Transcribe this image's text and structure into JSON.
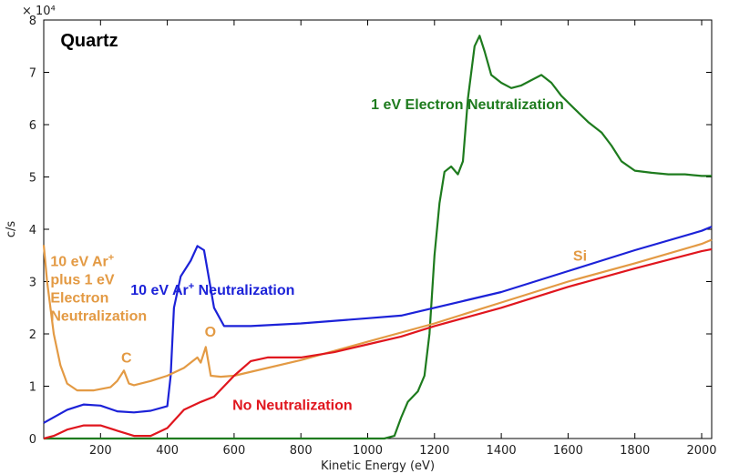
{
  "chart_data": {
    "type": "line",
    "title": "Quartz",
    "xlabel": "Kinetic Energy (eV)",
    "ylabel": "c/s",
    "y_multiplier": "× 10⁴",
    "xlim": [
      30,
      2030
    ],
    "ylim": [
      0,
      8
    ],
    "grid": false,
    "xticks": [
      "200",
      "400",
      "600",
      "800",
      "1000",
      "1200",
      "1400",
      "1600",
      "1800",
      "2000"
    ],
    "yticks": [
      "0",
      "1",
      "2",
      "3",
      "4",
      "5",
      "6",
      "7",
      "8"
    ],
    "series": [
      {
        "name": "1 eV Electron Neutralization",
        "color": "#1e7b1e",
        "points": [
          [
            30,
            0
          ],
          [
            1050,
            0
          ],
          [
            1080,
            0.05
          ],
          [
            1100,
            0.4
          ],
          [
            1120,
            0.7
          ],
          [
            1150,
            0.9
          ],
          [
            1170,
            1.2
          ],
          [
            1185,
            2.0
          ],
          [
            1200,
            3.5
          ],
          [
            1215,
            4.5
          ],
          [
            1230,
            5.1
          ],
          [
            1250,
            5.2
          ],
          [
            1270,
            5.05
          ],
          [
            1285,
            5.3
          ],
          [
            1300,
            6.5
          ],
          [
            1320,
            7.5
          ],
          [
            1335,
            7.7
          ],
          [
            1350,
            7.4
          ],
          [
            1370,
            6.95
          ],
          [
            1400,
            6.8
          ],
          [
            1430,
            6.7
          ],
          [
            1460,
            6.75
          ],
          [
            1490,
            6.85
          ],
          [
            1520,
            6.95
          ],
          [
            1550,
            6.8
          ],
          [
            1580,
            6.55
          ],
          [
            1620,
            6.3
          ],
          [
            1660,
            6.05
          ],
          [
            1700,
            5.85
          ],
          [
            1730,
            5.6
          ],
          [
            1760,
            5.3
          ],
          [
            1800,
            5.12
          ],
          [
            1850,
            5.08
          ],
          [
            1900,
            5.05
          ],
          [
            1950,
            5.05
          ],
          [
            2000,
            5.02
          ],
          [
            2030,
            5.02
          ]
        ]
      },
      {
        "name": "10 eV Ar⁺ Neutralization",
        "color": "#1c22d8",
        "points": [
          [
            30,
            0.3
          ],
          [
            100,
            0.55
          ],
          [
            150,
            0.65
          ],
          [
            200,
            0.63
          ],
          [
            250,
            0.52
          ],
          [
            300,
            0.5
          ],
          [
            350,
            0.53
          ],
          [
            400,
            0.62
          ],
          [
            410,
            1.2
          ],
          [
            420,
            2.5
          ],
          [
            440,
            3.1
          ],
          [
            470,
            3.4
          ],
          [
            490,
            3.68
          ],
          [
            510,
            3.6
          ],
          [
            540,
            2.5
          ],
          [
            570,
            2.15
          ],
          [
            650,
            2.15
          ],
          [
            800,
            2.2
          ],
          [
            1000,
            2.3
          ],
          [
            1100,
            2.35
          ],
          [
            1200,
            2.5
          ],
          [
            1400,
            2.8
          ],
          [
            1600,
            3.2
          ],
          [
            1800,
            3.6
          ],
          [
            2000,
            3.97
          ],
          [
            2030,
            4.05
          ]
        ]
      },
      {
        "name": "10 eV Ar⁺ plus 1 eV Electron Neutralization",
        "color": "#e39a44",
        "points": [
          [
            30,
            3.7
          ],
          [
            40,
            3.0
          ],
          [
            60,
            2.0
          ],
          [
            80,
            1.4
          ],
          [
            100,
            1.05
          ],
          [
            130,
            0.92
          ],
          [
            180,
            0.92
          ],
          [
            230,
            0.98
          ],
          [
            250,
            1.1
          ],
          [
            270,
            1.3
          ],
          [
            285,
            1.05
          ],
          [
            300,
            1.02
          ],
          [
            350,
            1.1
          ],
          [
            400,
            1.2
          ],
          [
            450,
            1.35
          ],
          [
            490,
            1.55
          ],
          [
            500,
            1.45
          ],
          [
            515,
            1.75
          ],
          [
            530,
            1.2
          ],
          [
            560,
            1.18
          ],
          [
            600,
            1.2
          ],
          [
            800,
            1.5
          ],
          [
            1000,
            1.85
          ],
          [
            1200,
            2.2
          ],
          [
            1400,
            2.6
          ],
          [
            1600,
            3.0
          ],
          [
            1800,
            3.35
          ],
          [
            2000,
            3.72
          ],
          [
            2030,
            3.8
          ]
        ]
      },
      {
        "name": "No Neutralization",
        "color": "#e0161e",
        "points": [
          [
            30,
            0
          ],
          [
            60,
            0.05
          ],
          [
            100,
            0.17
          ],
          [
            150,
            0.25
          ],
          [
            200,
            0.25
          ],
          [
            250,
            0.15
          ],
          [
            300,
            0.05
          ],
          [
            350,
            0.05
          ],
          [
            400,
            0.2
          ],
          [
            450,
            0.55
          ],
          [
            500,
            0.7
          ],
          [
            540,
            0.8
          ],
          [
            570,
            1.0
          ],
          [
            600,
            1.2
          ],
          [
            650,
            1.48
          ],
          [
            700,
            1.55
          ],
          [
            800,
            1.55
          ],
          [
            900,
            1.65
          ],
          [
            1000,
            1.8
          ],
          [
            1100,
            1.95
          ],
          [
            1200,
            2.15
          ],
          [
            1400,
            2.5
          ],
          [
            1600,
            2.9
          ],
          [
            1800,
            3.25
          ],
          [
            2000,
            3.58
          ],
          [
            2030,
            3.62
          ]
        ]
      }
    ],
    "annotations": [
      {
        "text": "Quartz",
        "x": 80,
        "y": 7.5
      },
      {
        "text": "1 eV Electron Neutralization",
        "x": 1010,
        "y": 6.3,
        "color": "#1e7b1e"
      },
      {
        "text": "10 eV Ar",
        "sup": "+",
        "x": 290,
        "y": 2.75,
        "color": "#1c22d8",
        "suffix": " Neutralization"
      },
      {
        "text": "No Neutralization",
        "x": 595,
        "y": 0.55,
        "color": "#e0161e"
      },
      {
        "text": "C",
        "x": 262,
        "y": 1.45,
        "color": "#e39a44"
      },
      {
        "text": "O",
        "x": 512,
        "y": 1.95,
        "color": "#e39a44"
      },
      {
        "text": "Si",
        "x": 1615,
        "y": 3.4,
        "color": "#e39a44"
      },
      {
        "text": "10 eV Ar",
        "sup": "+",
        "x": 50,
        "y": 3.3,
        "color": "#e39a44"
      },
      {
        "text": "plus 1 eV",
        "x": 50,
        "y": 2.95,
        "color": "#e39a44"
      },
      {
        "text": "Electron",
        "x": 50,
        "y": 2.6,
        "color": "#e39a44"
      },
      {
        "text": "Neutralization",
        "x": 50,
        "y": 2.25,
        "color": "#e39a44"
      }
    ]
  }
}
